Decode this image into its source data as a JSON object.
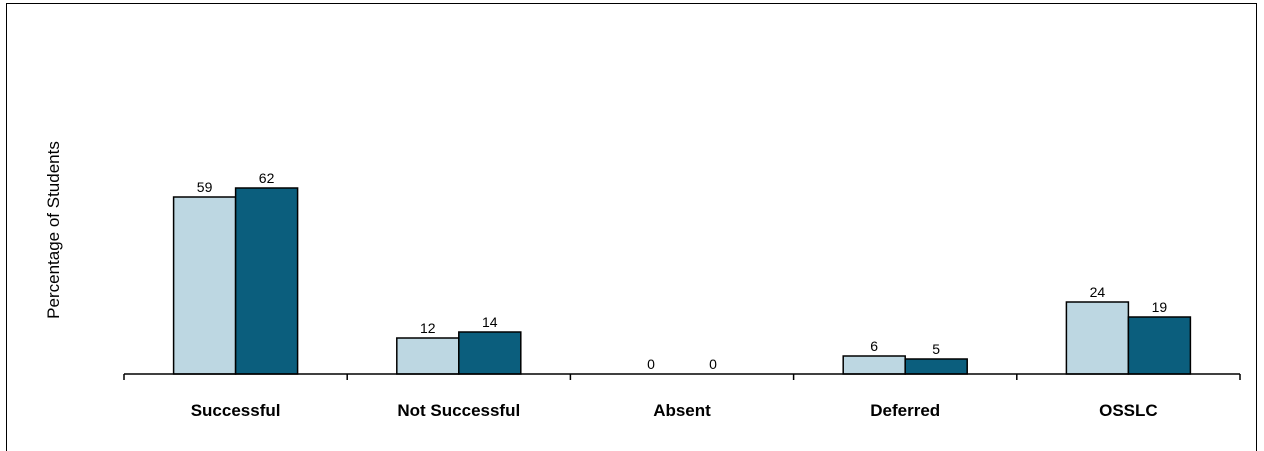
{
  "chart_data": {
    "type": "bar",
    "title": "",
    "xlabel": "",
    "ylabel": "Percentage of Students",
    "ylim": [
      0,
      100
    ],
    "grid": false,
    "categories": [
      "Successful",
      "Not Successful",
      "Absent",
      "Deferred",
      "OSSLC"
    ],
    "series": [
      {
        "values": [
          59,
          12,
          0,
          6,
          24
        ],
        "color": "#bdd7e2"
      },
      {
        "values": [
          62,
          14,
          0,
          5,
          19
        ],
        "color": "#0b5e7d"
      }
    ]
  }
}
